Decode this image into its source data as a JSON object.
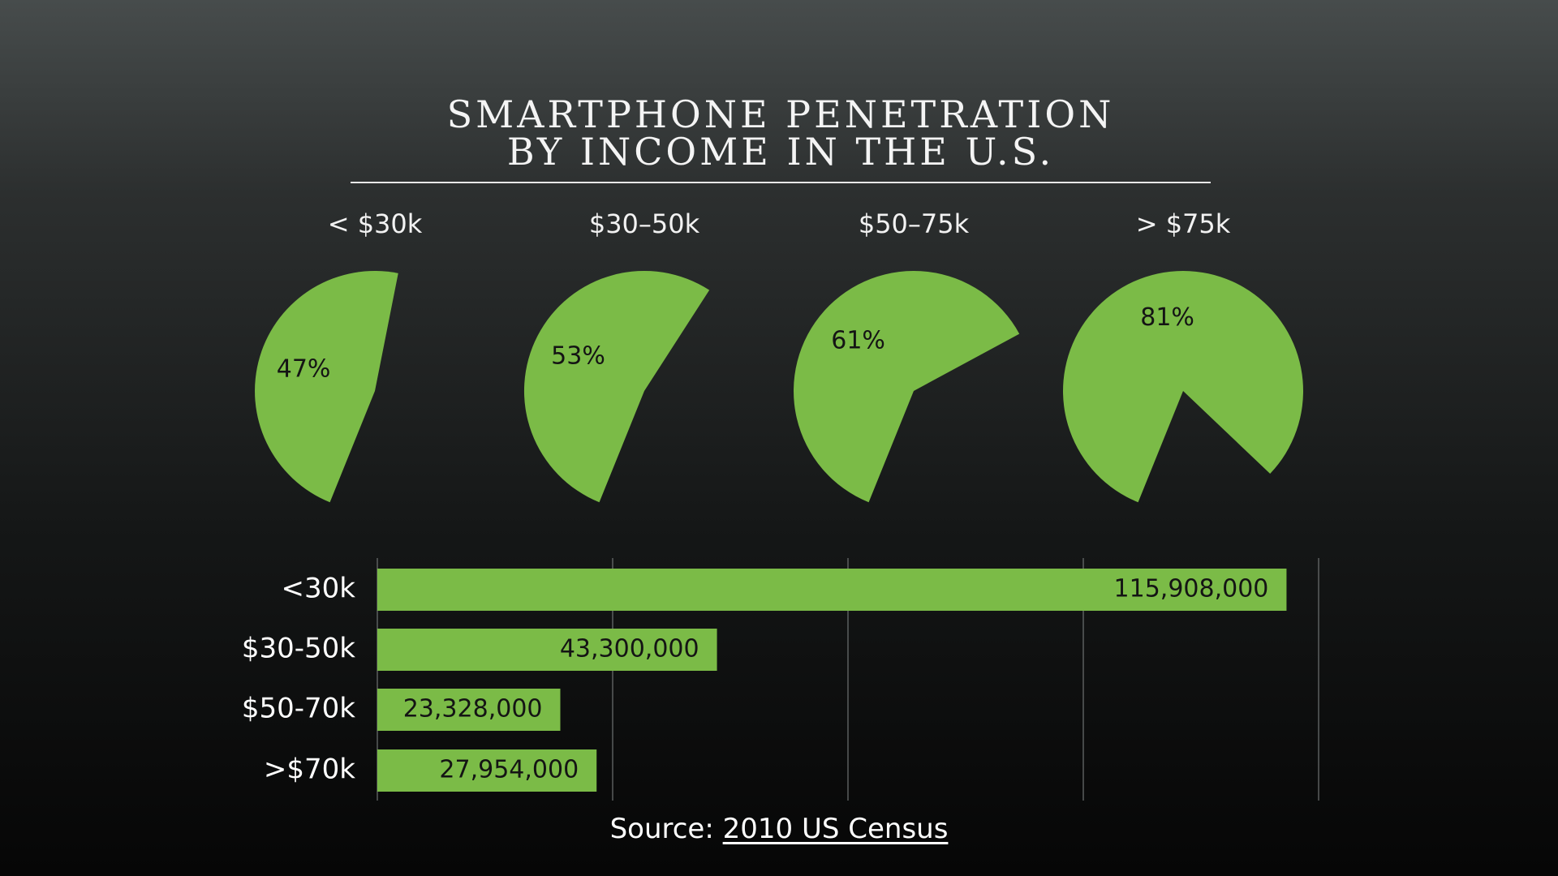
{
  "title": {
    "line1": "SMARTPHONE PENETRATION",
    "line2": "BY INCOME IN THE U.S."
  },
  "colors": {
    "green": "#7bbb47",
    "grid": "#6e7272",
    "text_dark": "#141414",
    "text_light": "#ffffff"
  },
  "chart_data": [
    {
      "type": "pie",
      "categories": [
        "< $30k",
        "$30–50k",
        "$50–75k",
        "> $75k"
      ],
      "values": [
        47,
        53,
        61,
        81
      ],
      "value_labels": [
        "47%",
        "53%",
        "61%",
        "81%"
      ],
      "unit": "%"
    },
    {
      "type": "bar",
      "orientation": "horizontal",
      "categories": [
        "<30k",
        "$30-50k",
        "$50-70k",
        ">$70k"
      ],
      "values": [
        115908000,
        43300000,
        23328000,
        27954000
      ],
      "value_labels": [
        "115,908,000",
        "43,300,000",
        "23,328,000",
        "27,954,000"
      ],
      "xlim": [
        0,
        120000000
      ],
      "grid": true
    }
  ],
  "source": {
    "prefix": "Source: ",
    "link_text": "2010 US Census"
  }
}
